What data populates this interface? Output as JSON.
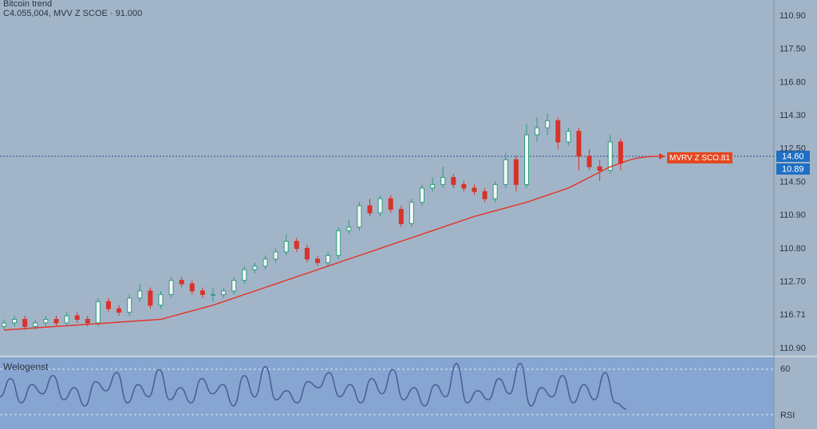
{
  "header": {
    "title": "Bitcoin trend",
    "subtitle": "C4.055,004, MVV Z SCOE · 91.000"
  },
  "price_axis": [
    "110.90",
    "117.50",
    "116.80",
    "114.30",
    "112.50",
    "114.50",
    "110.90",
    "110.80",
    "112.70",
    "116.71",
    "110.90"
  ],
  "price_tags": [
    "14.60",
    "10.89"
  ],
  "annotation": "MVRV Z SCO.81",
  "chart_data": {
    "type": "candlestick",
    "ylim": [
      0,
      100
    ],
    "up_color": "#2e9c7e",
    "down_color": "#d8322a",
    "ohlc": [
      [
        8,
        10,
        7,
        9
      ],
      [
        9,
        11,
        8,
        10
      ],
      [
        10,
        11,
        7,
        8
      ],
      [
        8,
        10,
        7,
        9
      ],
      [
        9,
        11,
        8,
        10
      ],
      [
        10,
        11,
        8,
        9
      ],
      [
        9,
        12,
        8,
        11
      ],
      [
        11,
        12,
        9,
        10
      ],
      [
        10,
        11,
        8,
        9
      ],
      [
        9,
        16,
        8,
        15
      ],
      [
        15,
        16,
        12,
        13
      ],
      [
        13,
        14,
        11,
        12
      ],
      [
        12,
        17,
        11,
        16
      ],
      [
        16,
        20,
        15,
        18
      ],
      [
        18,
        19,
        13,
        14
      ],
      [
        14,
        18,
        13,
        17
      ],
      [
        17,
        22,
        16,
        21
      ],
      [
        21,
        22,
        19,
        20
      ],
      [
        20,
        21,
        17,
        18
      ],
      [
        18,
        19,
        16,
        17
      ],
      [
        17,
        19,
        15,
        17
      ],
      [
        17,
        19,
        16,
        18
      ],
      [
        18,
        22,
        17,
        21
      ],
      [
        21,
        25,
        20,
        24
      ],
      [
        24,
        26,
        23,
        25
      ],
      [
        25,
        28,
        24,
        27
      ],
      [
        27,
        30,
        26,
        29
      ],
      [
        29,
        34,
        28,
        32
      ],
      [
        32,
        33,
        29,
        30
      ],
      [
        30,
        31,
        26,
        27
      ],
      [
        27,
        28,
        25,
        26
      ],
      [
        26,
        29,
        25,
        28
      ],
      [
        28,
        36,
        27,
        35
      ],
      [
        35,
        38,
        34,
        36
      ],
      [
        36,
        43,
        35,
        42
      ],
      [
        42,
        44,
        39,
        40
      ],
      [
        40,
        45,
        39,
        44
      ],
      [
        44,
        45,
        40,
        41
      ],
      [
        41,
        42,
        36,
        37
      ],
      [
        37,
        44,
        36,
        43
      ],
      [
        43,
        48,
        42,
        47
      ],
      [
        47,
        50,
        46,
        48
      ],
      [
        48,
        53,
        47,
        50
      ],
      [
        50,
        51,
        47,
        48
      ],
      [
        48,
        49,
        46,
        47
      ],
      [
        47,
        48,
        45,
        46
      ],
      [
        46,
        47,
        43,
        44
      ],
      [
        44,
        49,
        43,
        48
      ],
      [
        48,
        57,
        47,
        55
      ],
      [
        55,
        56,
        46,
        48
      ],
      [
        48,
        65,
        47,
        62
      ],
      [
        62,
        67,
        60,
        64
      ],
      [
        64,
        68,
        62,
        66
      ],
      [
        66,
        67,
        58,
        60
      ],
      [
        60,
        64,
        59,
        63
      ],
      [
        63,
        64,
        52,
        56
      ],
      [
        56,
        58,
        52,
        53
      ],
      [
        53,
        55,
        49,
        52
      ],
      [
        52,
        62,
        51,
        60
      ],
      [
        60,
        61,
        52,
        54
      ]
    ],
    "ma": {
      "color": "#e0392b",
      "values": [
        7,
        7.2,
        7.4,
        7.6,
        7.8,
        8,
        8.2,
        8.4,
        8.6,
        8.8,
        9,
        9.2,
        9.4,
        9.6,
        9.8,
        10,
        10.8,
        11.6,
        12.4,
        13.2,
        14,
        15,
        16,
        17,
        18,
        19,
        20,
        21,
        22,
        23,
        24,
        25,
        26,
        27,
        28,
        29,
        30,
        31,
        32,
        33,
        34,
        35,
        36,
        37,
        38,
        39,
        39.8,
        40.6,
        41.4,
        42.2,
        43,
        44,
        45,
        46,
        47,
        48.5,
        50,
        51.5,
        53,
        54
      ]
    }
  },
  "indicator": {
    "title": "Welogenst",
    "top_label": "60",
    "label": "RSI",
    "ylim": [
      0,
      100
    ],
    "color": "#4a5a9a",
    "values": [
      40,
      70,
      30,
      60,
      45,
      75,
      35,
      55,
      25,
      65,
      50,
      80,
      30,
      60,
      40,
      85,
      35,
      55,
      30,
      70,
      45,
      60,
      25,
      75,
      40,
      90,
      35,
      50,
      30,
      65,
      55,
      80,
      40,
      60,
      30,
      70,
      45,
      85,
      35,
      55,
      25,
      60,
      40,
      95,
      30,
      50,
      35,
      70,
      45,
      95,
      25,
      55,
      40,
      75,
      30,
      60,
      35,
      80,
      30,
      20
    ]
  }
}
